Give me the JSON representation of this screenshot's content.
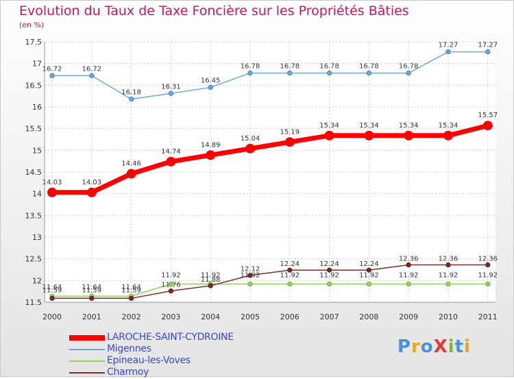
{
  "title": "Evolution du Taux de Taxe Foncière sur les Propriétés Bâties",
  "unit_label": "(en %)",
  "logo": {
    "text": "ProXiti",
    "colors": [
      "#4a90d9",
      "#e6a817",
      "#4a90d9",
      "#e53935",
      "#7cb342",
      "#4a90d9",
      "#e6a817"
    ]
  },
  "chart_data": {
    "type": "line",
    "title": "Evolution du Taux de Taxe Foncière sur les Propriétés Bâties",
    "ylabel": "(en %)",
    "xlabel": "",
    "x": [
      "2000",
      "2001",
      "2002",
      "2003",
      "2004",
      "2005",
      "2006",
      "2007",
      "2008",
      "2009",
      "2010",
      "2011"
    ],
    "ylim": [
      11.5,
      17.5
    ],
    "yticks": [
      "11.5",
      "12",
      "12.5",
      "13",
      "13.5",
      "14",
      "14.5",
      "15",
      "15.5",
      "16",
      "16.5",
      "17",
      "17.5"
    ],
    "grid": true,
    "legend": "bottom-left",
    "series": [
      {
        "name": "LAROCHE-SAINT-CYDROINE",
        "color": "#ff0000",
        "values": [
          14.03,
          14.03,
          14.46,
          14.74,
          14.89,
          15.04,
          15.19,
          15.34,
          15.34,
          15.34,
          15.34,
          15.57
        ],
        "labels": [
          "14.03",
          "14.03",
          "14.46",
          "14.74",
          "14.89",
          "15.04",
          "15.19",
          "15.34",
          "15.34",
          "15.34",
          "15.34",
          "15.57"
        ]
      },
      {
        "name": "Migennes",
        "color": "#6fa8dc",
        "values": [
          16.72,
          16.72,
          16.18,
          16.31,
          16.45,
          16.78,
          16.78,
          16.78,
          16.78,
          16.78,
          17.27,
          17.27
        ],
        "labels": [
          "16.72",
          "16.72",
          "16.18",
          "16.31",
          "16.45",
          "16.78",
          "16.78",
          "16.78",
          "16.78",
          "16.78",
          "17.27",
          "17.27"
        ]
      },
      {
        "name": "Epineau-les-Voves",
        "color": "#93d35b",
        "values": [
          11.64,
          11.64,
          11.64,
          11.92,
          11.92,
          11.92,
          11.92,
          11.92,
          11.92,
          11.92,
          11.92,
          11.92
        ],
        "labels": [
          "11.64",
          "11.64",
          "11.64",
          "11.92",
          "11.92",
          "11.92",
          "11.92",
          "11.92",
          "11.92",
          "11.92",
          "11.92",
          "11.92"
        ]
      },
      {
        "name": "Charmoy",
        "color": "#7b2a2a",
        "values": [
          11.59,
          11.59,
          11.59,
          11.76,
          11.88,
          12.12,
          12.24,
          12.24,
          12.24,
          12.36,
          12.36,
          12.36
        ],
        "labels": [
          "11.59",
          "11.59",
          "11.59",
          "11.76",
          "11.88",
          "12.12",
          "12.24",
          "12.24",
          "12.24",
          "12.36",
          "12.36",
          "12.36"
        ]
      }
    ]
  }
}
